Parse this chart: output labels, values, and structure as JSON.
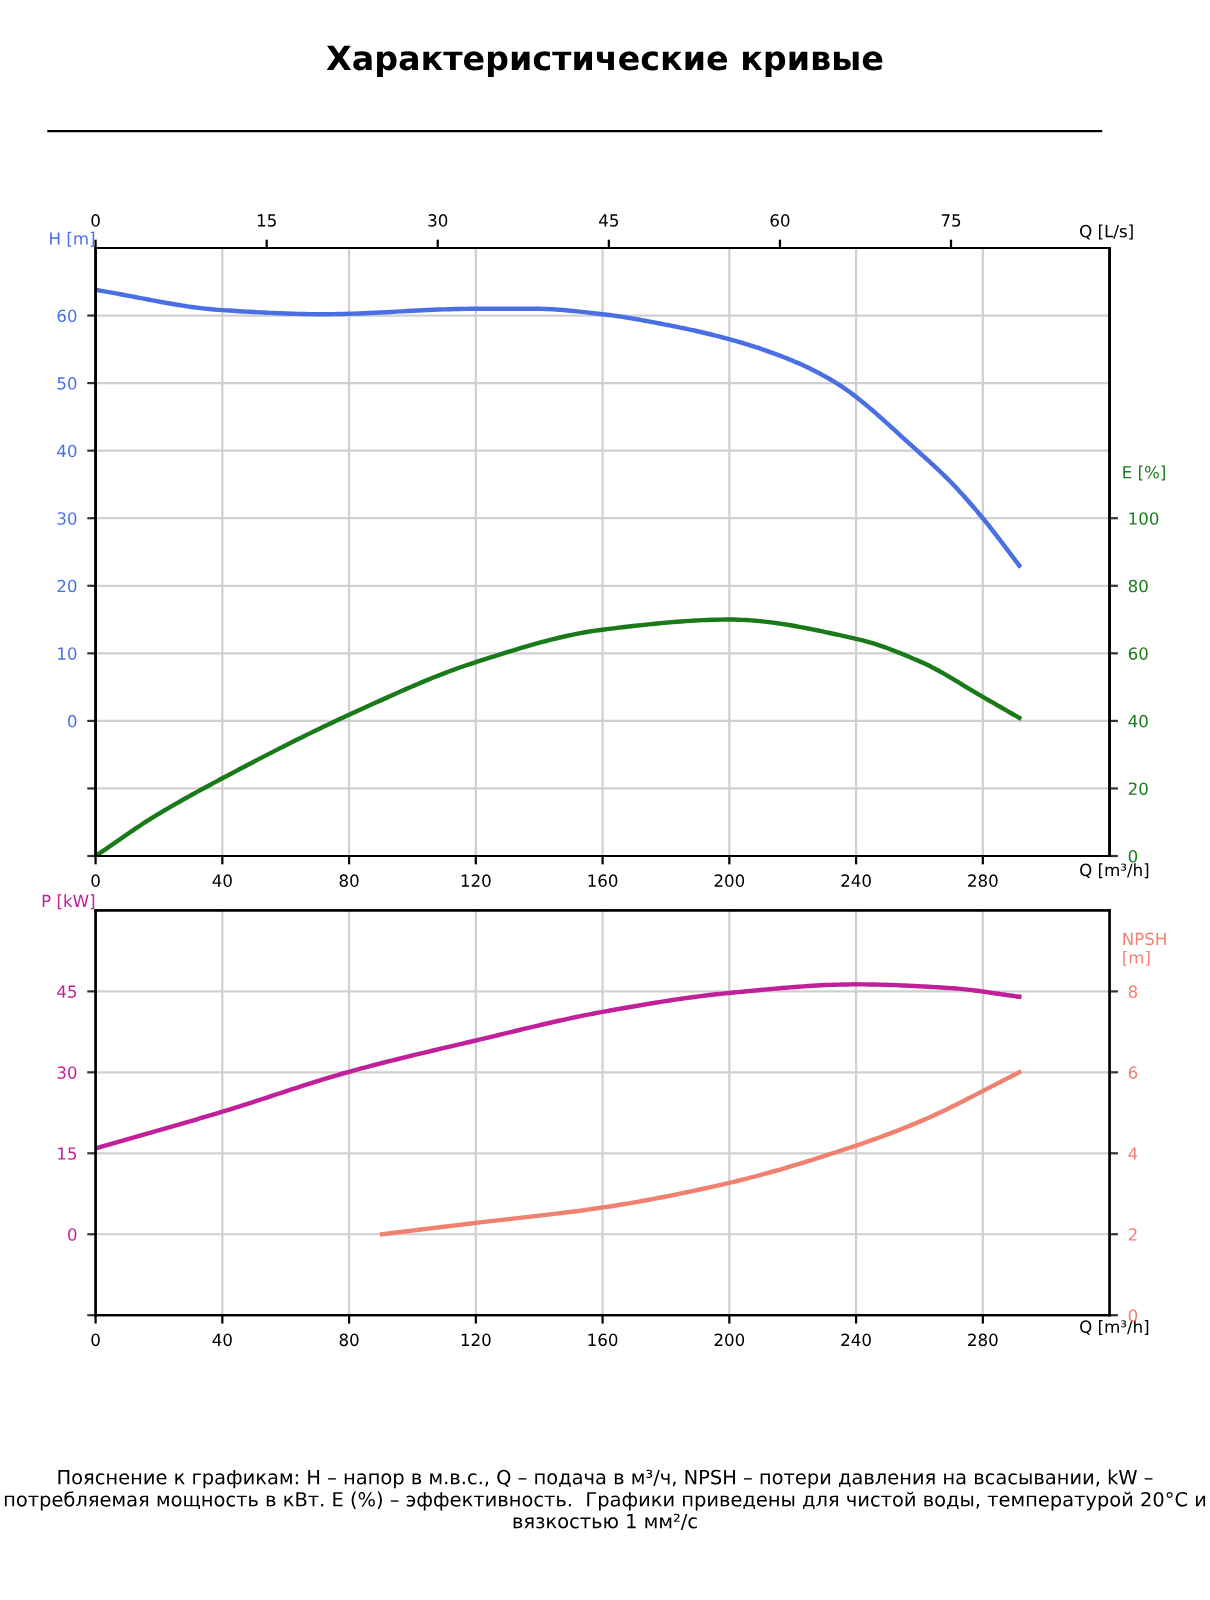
{
  "chart_data": [
    {
      "type": "line",
      "title": "Характеристические кривые",
      "ylabel": "H [m]",
      "y2label": "E [%]",
      "x2label": "Q [L/s]",
      "xlabel": "Q [m³/h]",
      "xlim": [
        0,
        320
      ],
      "xticks": [
        0,
        40,
        80,
        120,
        160,
        200,
        240,
        280
      ],
      "x2lim": [
        0,
        88.9
      ],
      "x2ticks": [
        0,
        15,
        30,
        45,
        60,
        75
      ],
      "ylim": [
        -20,
        70
      ],
      "yticks": [
        {
          "value": -20,
          "label": null
        },
        {
          "value": -10,
          "label": null
        },
        0,
        10,
        20,
        30,
        40,
        50,
        60
      ],
      "y2lim": [
        0,
        180
      ],
      "y2ticks": [
        0,
        20,
        40,
        60,
        80,
        100
      ],
      "grid": true,
      "series": [
        {
          "color": "#4a6fe3",
          "x": [
            0,
            40,
            71.5,
            120,
            139,
            160,
            180.5,
            200,
            219,
            233.8,
            259.3,
            270,
            280,
            291.5
          ],
          "values": [
            63.8,
            60.8,
            60.2,
            61.0,
            61.0,
            60.2,
            58.6,
            56.5,
            53.5,
            50,
            40,
            35.3,
            30,
            23.0
          ]
        },
        {
          "color": "#1a7a1a",
          "axis": "y2",
          "x": [
            0,
            18.2,
            40,
            80,
            120,
            160,
            200,
            240,
            260.6,
            280,
            291.5
          ],
          "values": [
            0,
            11.5,
            23,
            41.8,
            57.4,
            67.0,
            70.0,
            64.3,
            57.4,
            47.1,
            40.9
          ]
        }
      ]
    },
    {
      "type": "line",
      "ylabel": "P [kW]",
      "y2label": "NPSH\n[m]",
      "xlabel": "Q [m³/h]",
      "xlim": [
        0,
        320
      ],
      "xticks": [
        0,
        40,
        80,
        120,
        160,
        200,
        240,
        280
      ],
      "ylim": [
        -15,
        60
      ],
      "yticks": [
        {
          "value": -15,
          "label": null
        },
        0,
        15,
        30,
        45
      ],
      "y2lim": [
        0,
        10
      ],
      "y2ticks": [
        0,
        2,
        4,
        6,
        8
      ],
      "grid": true,
      "annotations": [
        "Пояснение к графикам: H – напор в м.в.с., Q – подача в м³/ч, NPSH – потери давления на всасывании, kW – потребляемая мощность в кВт. E (%) – эффективность.  Графики приведены для чистой воды, температурой 20°C и вязкостью 1 мм²/с"
      ],
      "series": [
        {
          "color": "#c0209a",
          "x": [
            0,
            40,
            80,
            120,
            160,
            200,
            240,
            270,
            291.5
          ],
          "values": [
            15.9,
            22.7,
            30.1,
            35.9,
            41.2,
            44.7,
            46.3,
            45.6,
            44.0
          ]
        },
        {
          "color": "#f08070",
          "axis": "y2",
          "x": [
            90.4,
            120,
            160,
            200,
            240,
            260.6,
            291.5
          ],
          "values": [
            2.0,
            2.28,
            2.66,
            3.27,
            4.19,
            4.8,
            6.0
          ]
        }
      ]
    }
  ]
}
